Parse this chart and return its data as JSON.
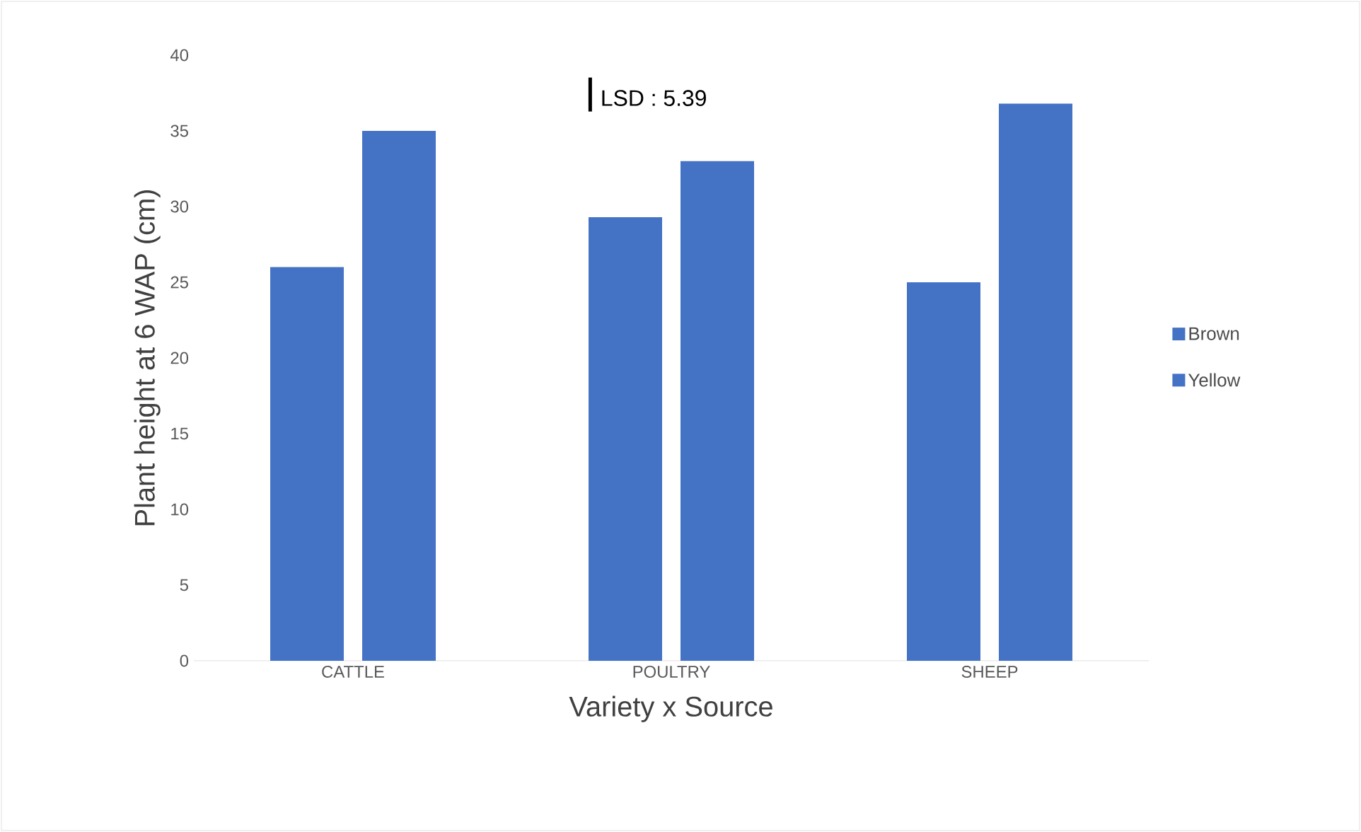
{
  "chart_data": {
    "type": "bar",
    "xlabel": "Variety x Source",
    "ylabel": "Plant height at 6 WAP (cm)",
    "categories": [
      "CATTLE",
      "POULTRY",
      "SHEEP"
    ],
    "series": [
      {
        "name": "Brown",
        "color": "#4472c4",
        "values": [
          26,
          29.3,
          25
        ]
      },
      {
        "name": "Yellow",
        "color": "#4472c4",
        "values": [
          35,
          33,
          36.8
        ]
      }
    ],
    "ylim": [
      0,
      40
    ],
    "yticks": [
      0,
      5,
      10,
      15,
      20,
      25,
      30,
      35,
      40
    ],
    "grid": false,
    "legend": "right",
    "annotations": [
      "LSD : 5.39"
    ]
  }
}
